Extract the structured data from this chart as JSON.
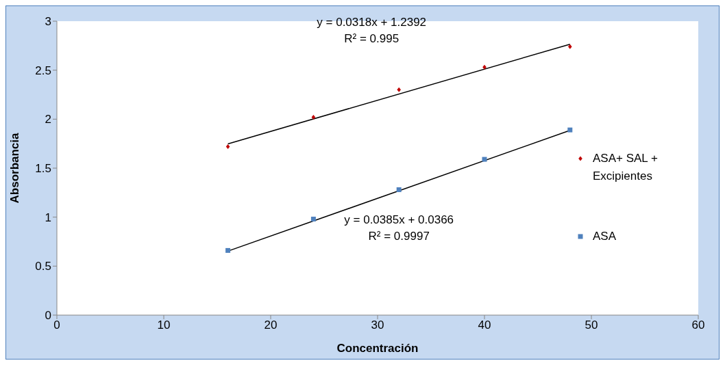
{
  "chart_data": {
    "type": "scatter",
    "xlabel": "Concentración",
    "ylabel": "Absorbancia",
    "xlim": [
      0,
      60
    ],
    "xticks": [
      0,
      10,
      20,
      30,
      40,
      50,
      60
    ],
    "ylim": [
      0,
      3
    ],
    "yticks": [
      0,
      0.5,
      1,
      1.5,
      2,
      2.5,
      3
    ],
    "legend": "right",
    "series": [
      {
        "name": "ASA+ SAL + Excipientes",
        "color": "#c00000",
        "marker": "diamond",
        "x": [
          16,
          24,
          32,
          40,
          48
        ],
        "values": [
          1.72,
          2.02,
          2.3,
          2.53,
          2.74
        ]
      },
      {
        "name": "ASA",
        "color": "#4f81bd",
        "marker": "square",
        "x": [
          16,
          24,
          32,
          40,
          48
        ],
        "values": [
          0.66,
          0.98,
          1.28,
          1.59,
          1.89
        ]
      },
      {
        "type": "line",
        "color": "#000000",
        "x": [
          16,
          48
        ],
        "values": [
          1.748,
          2.765
        ]
      },
      {
        "type": "line",
        "color": "#000000",
        "x": [
          16,
          48
        ],
        "values": [
          0.653,
          1.885
        ]
      }
    ],
    "annotations": [
      "y = 0.0318x + 1.2392\nR² = 0.995",
      "y = 0.0385x + 0.0366\nR² = 0.9997"
    ]
  }
}
